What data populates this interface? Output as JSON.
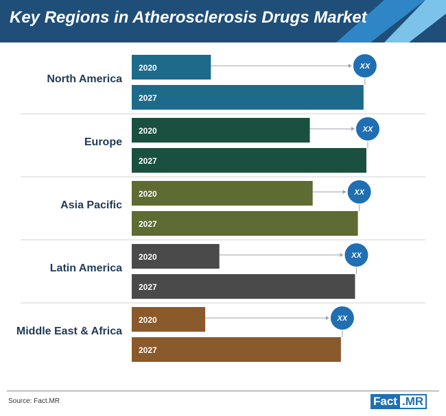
{
  "title": "Key Regions in Atherosclerosis Drugs Market",
  "source": "Source: Fact.MR",
  "logo": {
    "part1": "Fact",
    "part2": ".MR"
  },
  "colors": {
    "header": "#1f4e79",
    "header_accent_1": "#2f86c6",
    "header_accent_2": "#7cc3ea",
    "badge": "#1f6fb2",
    "divider": "#d0d0d0"
  },
  "chart_data": {
    "type": "bar",
    "orientation": "horizontal",
    "title": "Key Regions in Atherosclerosis Drugs Market",
    "value_labels": "XX",
    "categories": [
      "North America",
      "Europe",
      "Asia Pacific",
      "Latin America",
      "Middle East & Africa"
    ],
    "series": [
      {
        "name": "2020",
        "values": [
          28,
          63,
          64,
          31,
          26
        ]
      },
      {
        "name": "2027",
        "values": [
          82,
          83,
          80,
          79,
          74
        ]
      }
    ],
    "ylim": [
      0,
      100
    ],
    "category_colors": [
      "#1d6a8a",
      "#1a5040",
      "#5e6b32",
      "#4a4a4a",
      "#8b5a2b"
    ],
    "legend": "none",
    "grid": false
  }
}
